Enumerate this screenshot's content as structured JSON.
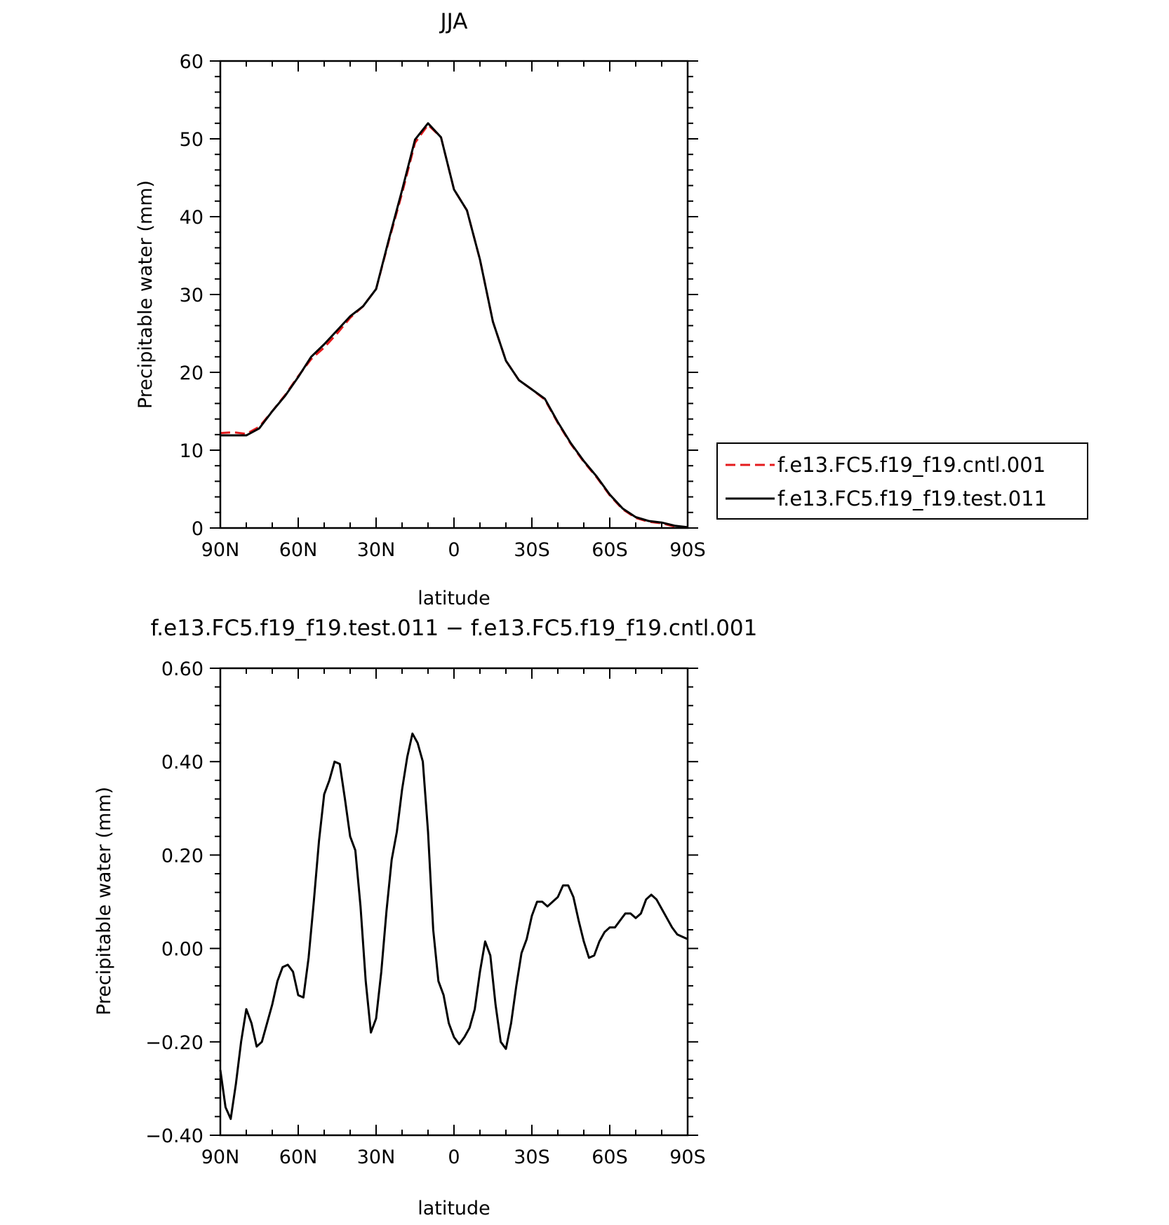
{
  "chart_data": [
    {
      "type": "line",
      "title": "JJA",
      "xlabel": "latitude",
      "ylabel": "Precipitable water (mm)",
      "xlim": [
        90,
        -90
      ],
      "ylim": [
        0,
        60
      ],
      "x_ticks": [
        90,
        60,
        30,
        0,
        -30,
        -60,
        -90
      ],
      "x_tick_labels": [
        "90N",
        "60N",
        "30N",
        "0",
        "30S",
        "60S",
        "90S"
      ],
      "y_ticks": [
        0,
        10,
        20,
        30,
        40,
        50,
        60
      ],
      "y_tick_labels": [
        "0",
        "10",
        "20",
        "30",
        "40",
        "50",
        "60"
      ],
      "legend_position": "right",
      "series": [
        {
          "name": "f.e13.FC5.f19_f19.cntl.001",
          "color": "#e41a1c",
          "dash": "dashed",
          "x": [
            90,
            85,
            80,
            75,
            70,
            65,
            60,
            55,
            50,
            45,
            40,
            35,
            30,
            25,
            20,
            15,
            10,
            5,
            0,
            -5,
            -10,
            -15,
            -20,
            -25,
            -30,
            -35,
            -40,
            -45,
            -50,
            -55,
            -60,
            -65,
            -70,
            -75,
            -80,
            -85,
            -90
          ],
          "y": [
            12.2,
            12.3,
            12.1,
            13.0,
            15.0,
            17.1,
            19.5,
            21.7,
            23.2,
            25.0,
            27.0,
            28.5,
            30.7,
            37.0,
            43.0,
            49.5,
            51.8,
            50.2,
            43.5,
            40.8,
            34.5,
            26.5,
            21.5,
            19.0,
            17.8,
            16.5,
            13.5,
            10.8,
            8.5,
            6.5,
            4.2,
            2.4,
            1.3,
            0.8,
            0.6,
            0.2,
            0.1
          ]
        },
        {
          "name": "f.e13.FC5.f19_f19.test.011",
          "color": "#000000",
          "dash": "solid",
          "x": [
            90,
            85,
            80,
            75,
            70,
            65,
            60,
            55,
            50,
            45,
            40,
            35,
            30,
            25,
            20,
            15,
            10,
            5,
            0,
            -5,
            -10,
            -15,
            -20,
            -25,
            -30,
            -35,
            -40,
            -45,
            -50,
            -55,
            -60,
            -65,
            -70,
            -75,
            -80,
            -85,
            -90
          ],
          "y": [
            11.9,
            11.9,
            11.9,
            12.8,
            15.0,
            17.0,
            19.4,
            22.0,
            23.6,
            25.4,
            27.2,
            28.5,
            30.7,
            37.2,
            43.4,
            49.9,
            52.0,
            50.2,
            43.5,
            40.8,
            34.5,
            26.5,
            21.5,
            19.0,
            17.8,
            16.6,
            13.6,
            10.9,
            8.6,
            6.6,
            4.3,
            2.5,
            1.4,
            0.9,
            0.7,
            0.3,
            0.1
          ]
        }
      ]
    },
    {
      "type": "line",
      "title": "f.e13.FC5.f19_f19.test.011 − f.e13.FC5.f19_f19.cntl.001",
      "xlabel": "latitude",
      "ylabel": "Precipitable water (mm)",
      "xlim": [
        90,
        -90
      ],
      "ylim": [
        -0.4,
        0.6
      ],
      "x_ticks": [
        90,
        60,
        30,
        0,
        -30,
        -60,
        -90
      ],
      "x_tick_labels": [
        "90N",
        "60N",
        "30N",
        "0",
        "30S",
        "60S",
        "90S"
      ],
      "y_ticks": [
        -0.4,
        -0.2,
        0.0,
        0.2,
        0.4,
        0.6
      ],
      "y_tick_labels": [
        "−0.40",
        "−0.20",
        "0.00",
        "0.20",
        "0.40",
        "0.60"
      ],
      "series": [
        {
          "color": "#000000",
          "dash": "solid",
          "x": [
            90,
            88,
            86,
            84,
            82,
            80,
            78,
            76,
            74,
            72,
            70,
            68,
            66,
            64,
            62,
            60,
            58,
            56,
            54,
            52,
            50,
            48,
            46,
            44,
            42,
            40,
            38,
            36,
            34,
            32,
            30,
            28,
            26,
            24,
            22,
            20,
            18,
            16,
            14,
            12,
            10,
            8,
            6,
            4,
            2,
            0,
            -2,
            -4,
            -6,
            -8,
            -10,
            -12,
            -14,
            -16,
            -18,
            -20,
            -22,
            -24,
            -26,
            -28,
            -30,
            -32,
            -34,
            -36,
            -38,
            -40,
            -42,
            -44,
            -46,
            -48,
            -50,
            -52,
            -54,
            -56,
            -58,
            -60,
            -62,
            -64,
            -66,
            -68,
            -70,
            -72,
            -74,
            -76,
            -78,
            -80,
            -82,
            -84,
            -86,
            -88,
            -90
          ],
          "y": [
            -0.26,
            -0.34,
            -0.365,
            -0.29,
            -0.2,
            -0.13,
            -0.16,
            -0.21,
            -0.2,
            -0.16,
            -0.12,
            -0.07,
            -0.04,
            -0.035,
            -0.05,
            -0.1,
            -0.105,
            -0.02,
            0.1,
            0.23,
            0.33,
            0.36,
            0.4,
            0.395,
            0.32,
            0.24,
            0.21,
            0.09,
            -0.07,
            -0.18,
            -0.15,
            -0.05,
            0.08,
            0.19,
            0.25,
            0.34,
            0.41,
            0.46,
            0.44,
            0.4,
            0.25,
            0.04,
            -0.07,
            -0.1,
            -0.16,
            -0.19,
            -0.205,
            -0.19,
            -0.17,
            -0.13,
            -0.05,
            0.015,
            -0.015,
            -0.12,
            -0.2,
            -0.215,
            -0.16,
            -0.08,
            -0.01,
            0.02,
            0.07,
            0.1,
            0.1,
            0.09,
            0.1,
            0.11,
            0.135,
            0.135,
            0.11,
            0.06,
            0.015,
            -0.02,
            -0.015,
            0.015,
            0.035,
            0.045,
            0.045,
            0.06,
            0.075,
            0.075,
            0.065,
            0.075,
            0.105,
            0.115,
            0.105,
            0.085,
            0.065,
            0.045,
            0.03,
            0.025,
            0.02
          ]
        }
      ]
    }
  ]
}
